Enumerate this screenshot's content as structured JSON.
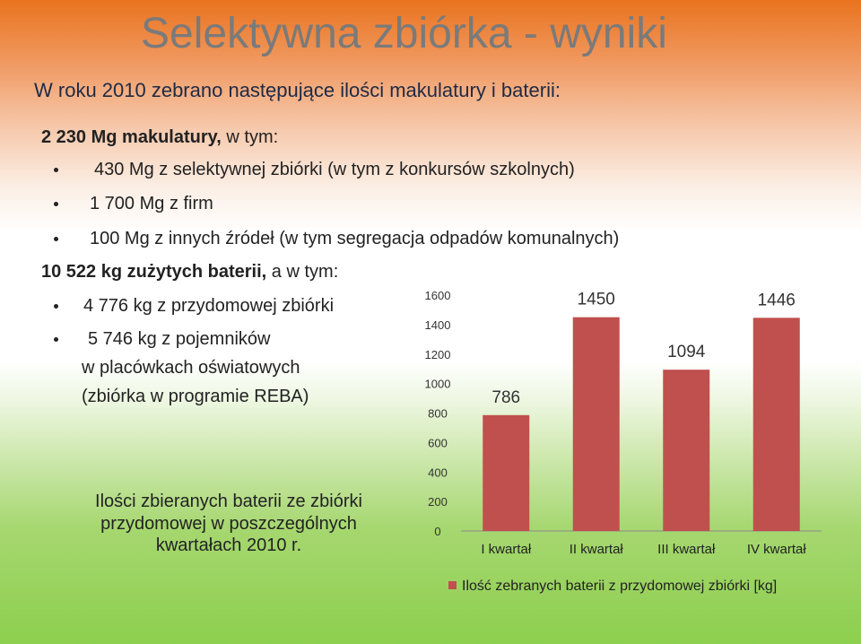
{
  "title": "Selektywna zbiórka - wyniki",
  "intro": "W roku 2010 zebrano następujące ilości makulatury i baterii:",
  "paper": {
    "heading_bold": "2 230 Mg makulatury,",
    "heading_rest": " w tym:",
    "items": [
      "430 Mg z selektywnej zbiórki (w tym z konkursów szkolnych)",
      "1 700 Mg z firm",
      "100 Mg z innych źródeł (w tym segregacja odpadów komunalnych)"
    ]
  },
  "batteries": {
    "heading_bold": "10 522 kg zużytych baterii,",
    "heading_rest": " a w tym:",
    "item1": "4 776 kg z przydomowej zbiórki",
    "item2_lines": [
      "5 746 kg z pojemników",
      "w placówkach oświatowych",
      "(zbiórka w programie REBA)"
    ]
  },
  "chart_caption": "Ilości zbieranych baterii ze zbiórki przydomowej w poszczególnych kwartałach 2010 r.",
  "chart_data": {
    "type": "bar",
    "categories": [
      "I kwartał",
      "II kwartał",
      "III kwartał",
      "IV kwartał"
    ],
    "series": [
      {
        "name": "Ilość zebranych baterii z przydomowej zbiórki [kg]",
        "values": [
          786,
          1450,
          1094,
          1446
        ]
      }
    ],
    "ylim": [
      0,
      1600
    ],
    "yticks": [
      0,
      200,
      400,
      600,
      800,
      1000,
      1200,
      1400,
      1600
    ],
    "data_labels": true,
    "legend": "bottom",
    "grid": false,
    "bar_color": "#c0504d"
  }
}
